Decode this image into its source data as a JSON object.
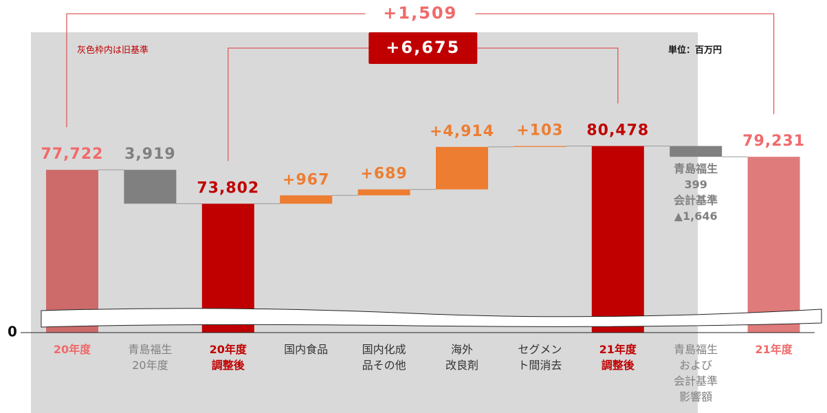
{
  "chart_data": {
    "type": "waterfall",
    "note": "灰色枠内は旧基準",
    "unit": "単位：百万円",
    "categories": [
      "20年度",
      "青島福生\n20年度",
      "20年度\n調整後",
      "国内食品",
      "国内化成\n品その他",
      "海外\n改良剤",
      "セグメン\nト間消去",
      "21年度\n調整後",
      "青島福生\nおよび\n会計基準\n影響額",
      "21年度"
    ],
    "values": [
      77722,
      -3919,
      73802,
      967,
      689,
      4914,
      103,
      80478,
      -1247,
      79231
    ],
    "value_labels": [
      "77,722",
      "3,919",
      "73,802",
      "+967",
      "+689",
      "+4,914",
      "+103",
      "80,478",
      null,
      "79,231"
    ],
    "totals": [
      true,
      false,
      true,
      false,
      false,
      false,
      false,
      true,
      false,
      true
    ],
    "colors": [
      "#cd6b6b",
      "#808080",
      "#c00000",
      "#ed7d31",
      "#ed7d31",
      "#ed7d31",
      "#ed7d31",
      "#c00000",
      "#808080",
      "#e07b7b"
    ],
    "value_label_colors": [
      "#f06a6a",
      "#808080",
      "#c00000",
      "#ed7d31",
      "#ed7d31",
      "#ed7d31",
      "#ed7d31",
      "#c00000",
      "#808080",
      "#f06a6a"
    ],
    "label_colors": [
      "#f06a6a",
      "#808080",
      "#c00000",
      "#333333",
      "#333333",
      "#333333",
      "#333333",
      "#c00000",
      "#808080",
      "#f06a6a"
    ],
    "bar_annotations": [
      {
        "index": 8,
        "text": "青島福生\n399\n会計基準\n▲1,646"
      }
    ],
    "brackets": [
      {
        "label": "+1,509",
        "from": 0,
        "to": 9,
        "style": "plain"
      },
      {
        "label": "+6,675",
        "from": 2,
        "to": 7,
        "style": "box"
      }
    ],
    "shaded_range": [
      0,
      8
    ],
    "ylim": [
      0,
      93000
    ],
    "y_break": [
      0,
      60000
    ],
    "yticks": [
      0
    ]
  }
}
